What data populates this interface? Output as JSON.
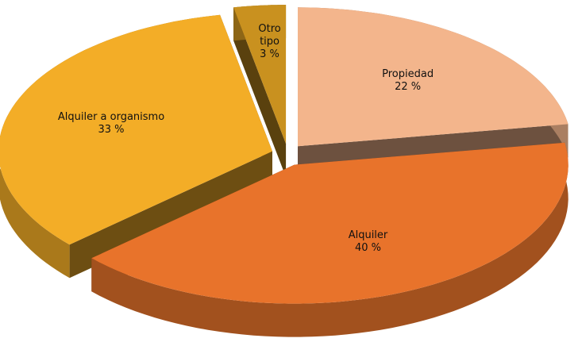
{
  "chart_data": {
    "type": "pie",
    "categories": [
      "Propiedad",
      "Alquiler",
      "Alquiler a organismo",
      "Otro tipo"
    ],
    "values": [
      22,
      40,
      33,
      3
    ],
    "value_labels": [
      "22 %",
      "40 %",
      "33 %",
      "3 %"
    ],
    "colors": [
      "#f3b58c",
      "#e8732b",
      "#f3ad27",
      "#c9911f"
    ]
  }
}
